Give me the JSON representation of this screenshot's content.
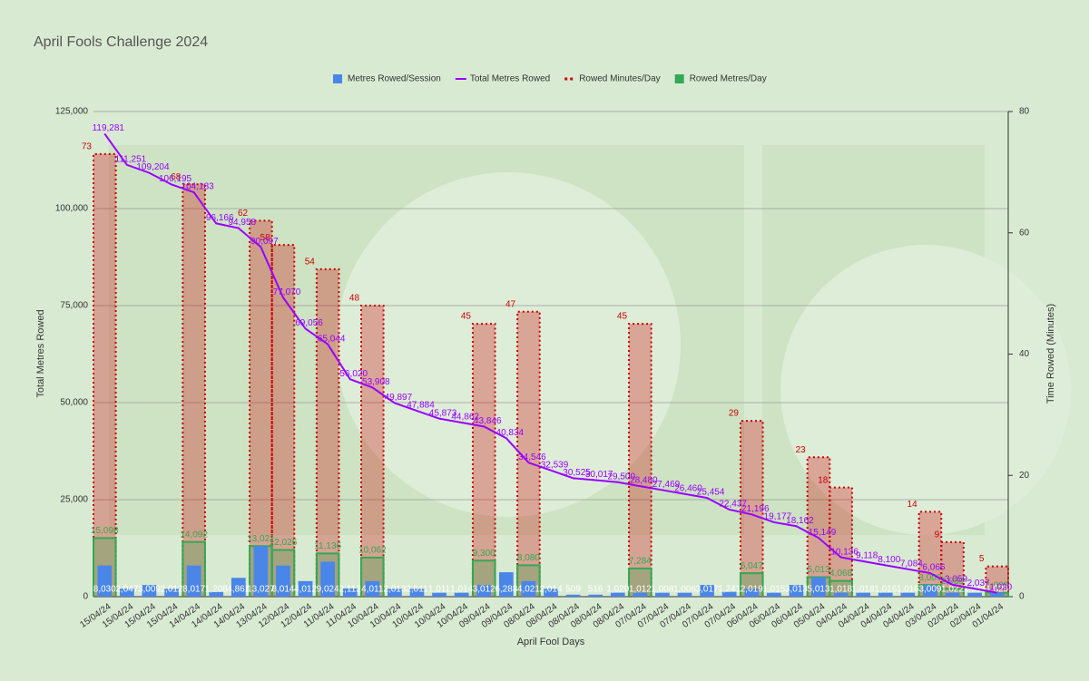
{
  "chart_data": {
    "type": "combo",
    "title": "April Fools Challenge 2024",
    "x_label": "April Fool Days",
    "y_label": "Total Metres Rowed",
    "y2_label": "Time Rowed (Minutes)",
    "categories": [
      "15/04/24",
      "15/04/24",
      "15/04/24",
      "15/04/24",
      "14/04/24",
      "14/04/24",
      "14/04/24",
      "13/04/24",
      "12/04/24",
      "12/04/24",
      "11/04/24",
      "11/04/24",
      "10/04/24",
      "10/04/24",
      "10/04/24",
      "10/04/24",
      "10/04/24",
      "09/04/24",
      "09/04/24",
      "08/04/24",
      "08/04/24",
      "08/04/24",
      "08/04/24",
      "08/04/24",
      "07/04/24",
      "07/04/24",
      "07/04/24",
      "07/04/24",
      "07/04/24",
      "06/04/24",
      "06/04/24",
      "06/04/24",
      "05/04/24",
      "04/04/24",
      "04/04/24",
      "04/04/24",
      "04/04/24",
      "03/04/24",
      "02/04/24",
      "02/04/24",
      "01/04/24"
    ],
    "ylim": [
      0,
      125000
    ],
    "yticks": [
      0,
      {
        "value": 25000,
        "label": "25,000"
      },
      {
        "value": 50000,
        "label": "50,000"
      },
      {
        "value": 75000,
        "label": "75,000"
      },
      {
        "value": 100000,
        "label": "100,000"
      },
      {
        "value": 125000,
        "label": "125,000"
      }
    ],
    "y2lim": [
      0,
      80
    ],
    "y2ticks": [
      0,
      20,
      40,
      60,
      80
    ],
    "grid": true,
    "legend": "top",
    "series": [
      {
        "name": "Rowed Minutes/Day",
        "type": "step_area",
        "axis": "y2",
        "color": "#cc0000",
        "values": [
          73,
          null,
          null,
          null,
          68,
          null,
          null,
          62,
          58,
          null,
          54,
          null,
          48,
          null,
          null,
          null,
          null,
          45,
          null,
          47,
          null,
          null,
          null,
          null,
          45,
          null,
          null,
          null,
          null,
          29,
          null,
          null,
          23,
          18,
          null,
          null,
          null,
          14,
          9,
          null,
          5
        ]
      },
      {
        "name": "Rowed Metres/Day",
        "type": "step_area",
        "color": "#34a853",
        "values": [
          15098,
          null,
          null,
          null,
          14092,
          null,
          null,
          13021,
          12026,
          null,
          11136,
          null,
          10062,
          null,
          null,
          null,
          null,
          9300,
          null,
          8080,
          null,
          null,
          null,
          null,
          7284,
          null,
          null,
          null,
          null,
          6047,
          null,
          null,
          5013,
          4068,
          null,
          null,
          null,
          3009,
          2039,
          null,
          1020
        ],
        "value_labels": [
          "15,098",
          null,
          null,
          null,
          "14,092",
          null,
          null,
          "13,021",
          "12,026",
          null,
          "11,136",
          null,
          "10,062",
          null,
          null,
          null,
          null,
          "9,300",
          null,
          "8,080",
          null,
          null,
          null,
          null,
          "7,284",
          null,
          null,
          null,
          null,
          "6,047",
          null,
          null,
          "5,013",
          "4,068",
          null,
          null,
          null,
          "3,009",
          "2,039",
          null,
          "1,020"
        ]
      },
      {
        "name": "Metres Rowed/Session",
        "type": "bar",
        "color": "#4a86e8",
        "values": [
          8030,
          2047,
          3009,
          2012,
          8017,
          1208,
          4861,
          13027,
          8014,
          4012,
          9024,
          2112,
          4011,
          2013,
          2011,
          1011,
          1014,
          3012,
          6288,
          4021,
          2014,
          509,
          516,
          1020,
          1012,
          1008,
          1006,
          3017,
          1241,
          2019,
          1015,
          3013,
          5013,
          1018,
          1018,
          1016,
          1016,
          3009,
          1022,
          1017,
          1020
        ],
        "value_labels": [
          "8,030",
          "2,047",
          "3,009",
          "2,012",
          "8,017",
          "1,208",
          "4,861",
          "13,027",
          "8,014",
          "4,012",
          "9,024",
          "2,112",
          "4,011",
          "2,013",
          "2,011",
          "1,011",
          "1,014",
          "3,012",
          "6,288",
          "4,021",
          "2,014",
          "509",
          "516",
          "1,020",
          "1,012",
          "1,008",
          "1,006",
          "3,017",
          "1,241",
          "2,019",
          "1,015",
          "3,013",
          "5,013",
          "1,018",
          "1,018",
          "1,016",
          "1,016",
          "3,009",
          "1,022",
          "1,017",
          "1,020"
        ]
      },
      {
        "name": "Total Metres Rowed",
        "type": "line",
        "color": "#9900ff",
        "values": [
          119281,
          111251,
          109204,
          106195,
          104183,
          96166,
          94958,
          90097,
          77070,
          69056,
          65044,
          56020,
          53908,
          49897,
          47884,
          45873,
          44862,
          43846,
          40834,
          34546,
          32539,
          30525,
          30017,
          29500,
          28480,
          27469,
          26460,
          25454,
          22437,
          21196,
          19177,
          18162,
          15149,
          10136,
          9118,
          8100,
          7084,
          6066,
          3059,
          2037,
          1020
        ],
        "value_labels": [
          "119,281",
          "111,251",
          "109,204",
          "106,195",
          "104,183",
          "96,166",
          "94,958",
          "90,097",
          "77,070",
          "69,056",
          "65,044",
          "56,020",
          "53,908",
          "49,897",
          "47,884",
          "45,873",
          "44,862",
          "43,846",
          "40,834",
          "34,546",
          "32,539",
          "30,525",
          "30,017",
          "29,500",
          "28,480",
          "27,469",
          "26,460",
          "25,454",
          "22,437",
          "21,196",
          "19,177",
          "18,162",
          "15,149",
          "10,136",
          "9,118",
          "8,100",
          "7,084",
          "6,066",
          "3,059",
          "2,037",
          "1,020"
        ]
      }
    ]
  }
}
